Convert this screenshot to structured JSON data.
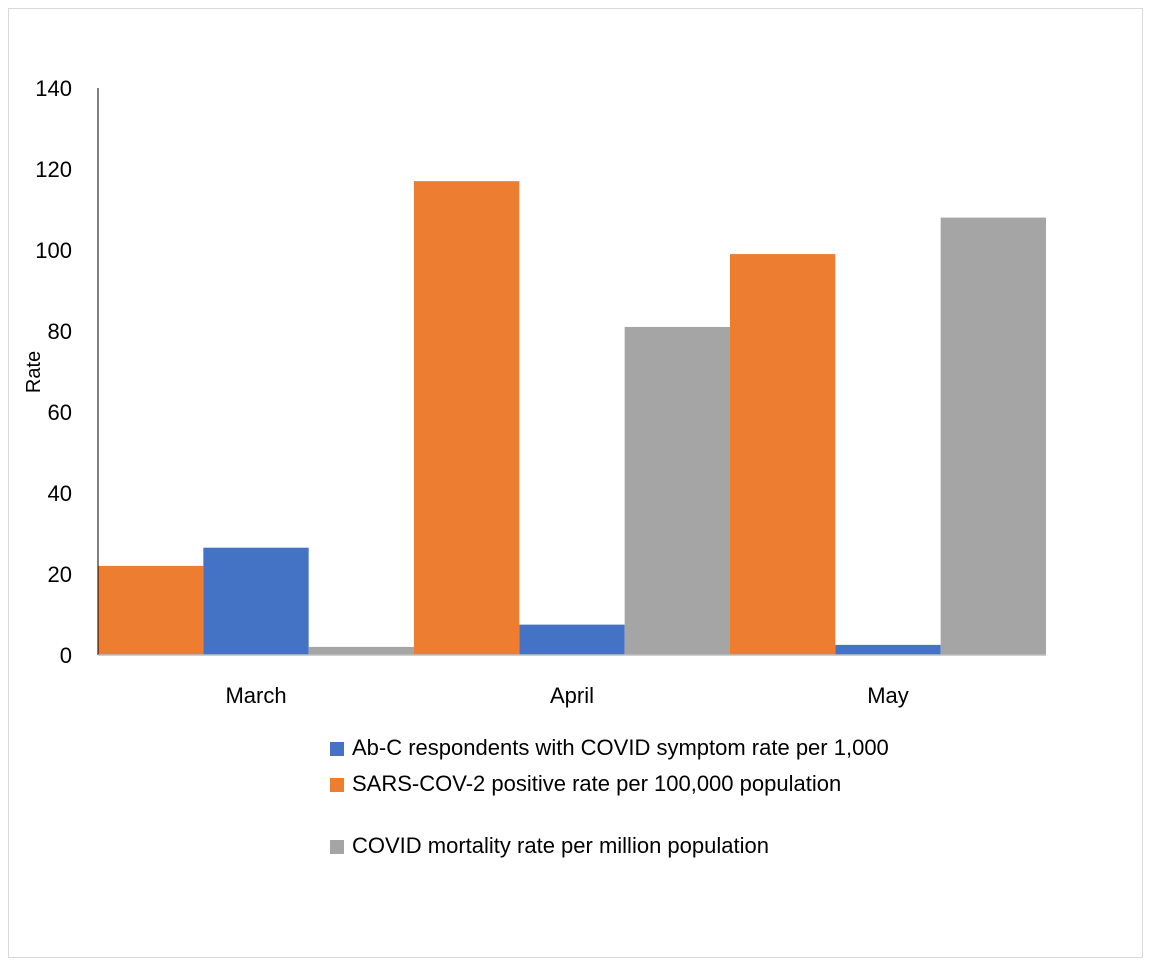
{
  "chart_data": {
    "type": "bar",
    "categories": [
      "March",
      "April",
      "May"
    ],
    "series": [
      {
        "name": "SARS-COV-2 positive rate per 100,000 population",
        "color": "#ED7D31",
        "values": [
          22,
          117,
          99
        ]
      },
      {
        "name": "Ab-C respondents with COVID symptom rate per 1,000",
        "color": "#4472C4",
        "values": [
          26.5,
          7.5,
          2.5
        ]
      },
      {
        "name": "COVID mortality rate per million population",
        "color": "#A5A5A5",
        "values": [
          2,
          81,
          108
        ]
      }
    ],
    "ylabel": "Rate",
    "ylim": [
      0,
      140
    ],
    "yticks": [
      "0",
      "20",
      "40",
      "60",
      "80",
      "100",
      "120",
      "140"
    ],
    "grid": false,
    "legend_position": "bottom"
  },
  "legend": {
    "items": [
      {
        "label": "Ab-C respondents with COVID symptom rate per 1,000",
        "color": "#4472C4"
      },
      {
        "label": "SARS-COV-2 positive rate per 100,000 population",
        "color": "#ED7D31"
      },
      {
        "label": "COVID mortality rate per million population",
        "color": "#A5A5A5"
      }
    ]
  }
}
